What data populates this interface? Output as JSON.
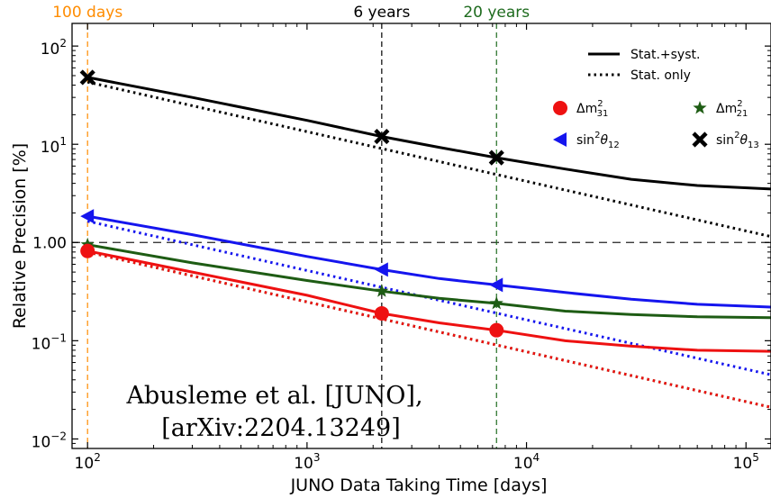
{
  "chart_data": {
    "type": "line",
    "xlabel": "JUNO Data Taking Time [days]",
    "ylabel": "Relative Precision [%]",
    "xscale": "log",
    "yscale": "log",
    "xlim": [
      85,
      130000
    ],
    "ylim": [
      0.008,
      170
    ],
    "x_ticks": [
      {
        "value": 100,
        "base": "10",
        "exp": "2"
      },
      {
        "value": 1000,
        "base": "10",
        "exp": "3"
      },
      {
        "value": 10000,
        "base": "10",
        "exp": "4"
      },
      {
        "value": 100000,
        "base": "10",
        "exp": "5"
      }
    ],
    "y_ticks": [
      {
        "value": 0.01,
        "base": "10",
        "exp": "−2"
      },
      {
        "value": 0.1,
        "base": "10",
        "exp": "−1"
      },
      {
        "value": 1,
        "text": "1.00"
      },
      {
        "value": 10,
        "base": "10",
        "exp": "1"
      },
      {
        "value": 100,
        "base": "10",
        "exp": "2"
      }
    ],
    "reference_line_y": 1,
    "vertical_markers": [
      {
        "x": 100,
        "label": "100 days",
        "color": "#ff8c00"
      },
      {
        "x": 2190,
        "label": "6 years",
        "color": "#000000"
      },
      {
        "x": 7300,
        "label": "20 years",
        "color": "#1e6b1e"
      }
    ],
    "legend_styles": [
      {
        "label": "Stat.+syst.",
        "dash": "solid"
      },
      {
        "label": "Stat. only",
        "dash": "dotted"
      }
    ],
    "legend_params": [
      {
        "pre": "Δm",
        "sup": "2",
        "sub": "31",
        "marker": "circle",
        "color": "#ee1111"
      },
      {
        "pre": "Δm",
        "sup": "2",
        "sub": "21",
        "marker": "star",
        "color": "#1e5c14"
      },
      {
        "pre": "sin",
        "sup": "2",
        "mid": "θ",
        "sub": "12",
        "marker": "triangle-left",
        "color": "#1515ee"
      },
      {
        "pre": "sin",
        "sup": "2",
        "mid": "θ",
        "sub": "13",
        "marker": "x-mark",
        "color": "#000000"
      }
    ],
    "series": [
      {
        "label": "sin²θ13",
        "style": "stat+syst",
        "color": "#000000",
        "marker": "x-mark",
        "x": [
          100,
          300,
          1000,
          2190,
          4000,
          7300,
          15000,
          30000,
          60000,
          130000
        ],
        "y": [
          48,
          30,
          17.5,
          12,
          9.3,
          7.3,
          5.6,
          4.4,
          3.8,
          3.5
        ],
        "marked_x": [
          100,
          2190,
          7300
        ]
      },
      {
        "label": "sin²θ13",
        "style": "stat only",
        "color": "#000000",
        "x": [
          100,
          130000
        ],
        "y": [
          43,
          1.15
        ]
      },
      {
        "label": "sin²θ12",
        "style": "stat+syst",
        "color": "#1515ee",
        "marker": "triangle-left",
        "x": [
          100,
          300,
          1000,
          2190,
          4000,
          7300,
          15000,
          30000,
          60000,
          130000
        ],
        "y": [
          1.85,
          1.2,
          0.72,
          0.53,
          0.43,
          0.37,
          0.31,
          0.265,
          0.235,
          0.22
        ],
        "marked_x": [
          100,
          2190,
          7300
        ]
      },
      {
        "label": "sin²θ12",
        "style": "stat only",
        "color": "#1515ee",
        "x": [
          100,
          130000
        ],
        "y": [
          1.65,
          0.045
        ]
      },
      {
        "label": "Δm²21",
        "style": "stat+syst",
        "color": "#1e5c14",
        "marker": "star",
        "x": [
          100,
          300,
          1000,
          2190,
          4000,
          7300,
          15000,
          30000,
          60000,
          130000
        ],
        "y": [
          0.95,
          0.62,
          0.41,
          0.32,
          0.27,
          0.24,
          0.2,
          0.185,
          0.175,
          0.172
        ],
        "marked_x": [
          100,
          2190,
          7300
        ]
      },
      {
        "label": "Δm²21",
        "style": "stat only",
        "color": "#1e5c14",
        "x": [
          100,
          130000
        ],
        "y": [
          0.8,
          0.021
        ]
      },
      {
        "label": "Δm²31",
        "style": "stat+syst",
        "color": "#ee1111",
        "marker": "circle",
        "x": [
          100,
          300,
          1000,
          2190,
          4000,
          7300,
          15000,
          30000,
          60000,
          130000
        ],
        "y": [
          0.82,
          0.5,
          0.29,
          0.19,
          0.152,
          0.128,
          0.1,
          0.088,
          0.08,
          0.078
        ],
        "marked_x": [
          100,
          2190,
          7300
        ]
      },
      {
        "label": "Δm²31",
        "style": "stat only",
        "color": "#ee1111",
        "x": [
          100,
          130000
        ],
        "y": [
          0.8,
          0.021
        ]
      }
    ],
    "annotation": [
      "Abusleme et al. [JUNO],",
      "[arXiv:2204.13249]"
    ]
  }
}
